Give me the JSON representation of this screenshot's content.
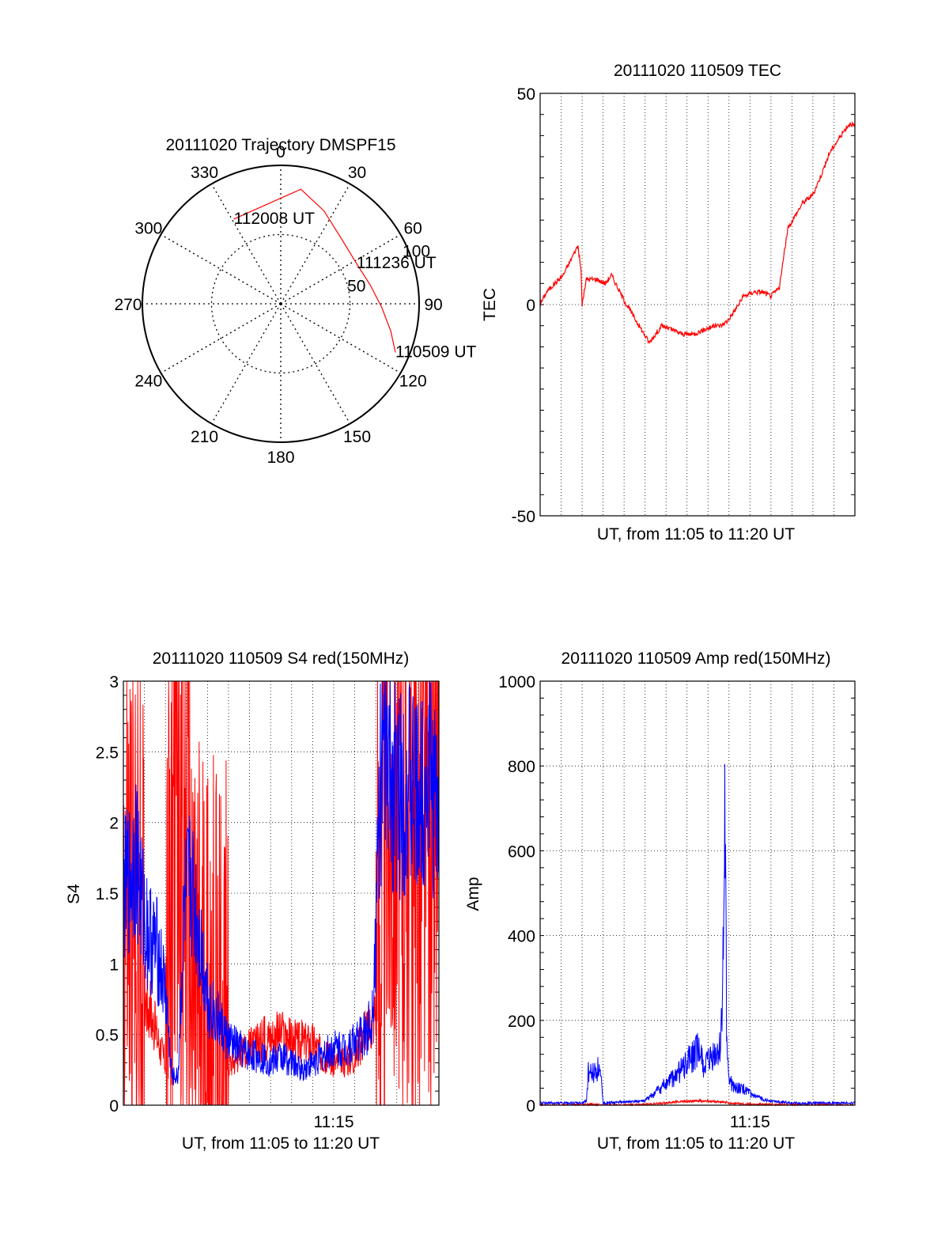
{
  "chart_data": [
    {
      "id": "trajectory",
      "type": "polar",
      "title": "20111020 Trajectory DMSPF15",
      "azimuth_labels": [
        "0",
        "30",
        "60",
        "90",
        "120",
        "150",
        "180",
        "210",
        "240",
        "270",
        "300",
        "330"
      ],
      "azimuths": [
        0,
        30,
        60,
        90,
        120,
        150,
        180,
        210,
        240,
        270,
        300,
        330
      ],
      "radial_labels": [
        "50",
        "100"
      ],
      "radial_values": [
        50,
        100
      ],
      "radial_max": 100,
      "series": [
        {
          "color": "#ff0000",
          "points": [
            {
              "az": 113,
              "zen": 90,
              "label": "110509 UT"
            },
            {
              "az": 104,
              "zen": 82
            },
            {
              "az": 92,
              "zen": 73
            },
            {
              "az": 78,
              "zen": 66
            },
            {
              "az": 62,
              "zen": 62,
              "label": "111236 UT"
            },
            {
              "az": 44,
              "zen": 64
            },
            {
              "az": 25,
              "zen": 74
            },
            {
              "az": 10,
              "zen": 84
            },
            {
              "az": 331,
              "zen": 70,
              "label": "112008 UT"
            }
          ]
        }
      ]
    },
    {
      "id": "tec",
      "type": "line",
      "title": "20111020 110509 TEC",
      "xlabel": "UT, from 11:05 to 11:20 UT",
      "ylabel": "TEC",
      "xlim": [
        0,
        15
      ],
      "ylim": [
        -50,
        50
      ],
      "yticks": [
        "-50",
        "0",
        "50"
      ],
      "ytick_values": [
        -50,
        0,
        50
      ],
      "xticks": [],
      "grid": true,
      "series": [
        {
          "color": "#ff0000",
          "x": [
            0,
            0.3,
            0.7,
            1.1,
            1.5,
            1.8,
            1.95,
            2.0,
            2.2,
            2.7,
            3.1,
            3.4,
            4.0,
            4.6,
            5.2,
            5.8,
            6.3,
            6.8,
            7.3,
            7.8,
            8.3,
            8.6,
            8.9,
            9.2,
            9.7,
            10.2,
            10.6,
            11.0,
            11.4,
            11.8,
            12.5,
            13.0,
            13.5,
            13.8,
            14.2,
            14.6,
            14.8,
            15.0
          ],
          "y": [
            0,
            3,
            5,
            7,
            11,
            14,
            8,
            0,
            6,
            6,
            5,
            7,
            1,
            -4,
            -9,
            -5,
            -6,
            -7,
            -7,
            -6,
            -5,
            -5,
            -4,
            -2,
            2,
            3,
            3,
            2,
            4,
            18,
            24,
            26,
            32,
            36,
            39,
            42,
            43,
            42
          ]
        }
      ]
    },
    {
      "id": "s4",
      "type": "line",
      "title": "20111020 110509 S4 red(150MHz)",
      "xlabel": "UT, from 11:05 to 11:20 UT",
      "ylabel": "S4",
      "xlim": [
        0,
        15
      ],
      "ylim": [
        0,
        3
      ],
      "yticks": [
        "0",
        "0.5",
        "1",
        "1.5",
        "2",
        "2.5",
        "3"
      ],
      "ytick_values": [
        0,
        0.5,
        1,
        1.5,
        2,
        2.5,
        3
      ],
      "xticks": [
        "11:15"
      ],
      "xtick_values": [
        10
      ],
      "grid": true,
      "series": [
        {
          "color": "#ff0000",
          "x": [
            0,
            0.5,
            1.0,
            2.0,
            2.5,
            3.0,
            3.5,
            4.0,
            4.5,
            5.0,
            5.5,
            6.0,
            6.5,
            7.0,
            7.5,
            8.0,
            8.5,
            9.0,
            9.5,
            10.0,
            10.5,
            11.0,
            11.5,
            11.8,
            12.0,
            12.5,
            13.0,
            13.5,
            14.0,
            15.0
          ],
          "y": [
            1.5,
            1.2,
            0.8,
            0.3,
            2.5,
            1.5,
            0.5,
            0.4,
            0.3,
            0.3,
            0.35,
            0.4,
            0.45,
            0.5,
            0.5,
            0.45,
            0.45,
            0.45,
            0.35,
            0.3,
            0.3,
            0.35,
            0.5,
            0.6,
            0.7,
            2.0,
            2.3,
            2.0,
            1.8,
            2.0
          ]
        },
        {
          "color": "#0000ff",
          "x": [
            0,
            0.3,
            0.6,
            0.9,
            1.2,
            1.6,
            2.0,
            2.3,
            2.6,
            2.9,
            3.2,
            3.5,
            3.8,
            4.1,
            4.5,
            5.0,
            5.5,
            6.0,
            6.5,
            7.0,
            7.5,
            8.0,
            8.5,
            9.0,
            9.5,
            10.0,
            10.5,
            11.0,
            11.5,
            11.8,
            12.0,
            12.2,
            12.5,
            13.0,
            13.5,
            14.0,
            14.5,
            15.0
          ],
          "y": [
            1.5,
            1.6,
            1.8,
            1.4,
            1.2,
            1.1,
            0.8,
            0.2,
            0.2,
            1.4,
            1.6,
            1.3,
            1.0,
            0.7,
            0.6,
            0.45,
            0.4,
            0.35,
            0.35,
            0.3,
            0.35,
            0.3,
            0.25,
            0.3,
            0.35,
            0.4,
            0.4,
            0.45,
            0.5,
            0.6,
            1.2,
            2.3,
            2.4,
            2.2,
            2.3,
            2.1,
            2.4,
            2.0
          ]
        }
      ]
    },
    {
      "id": "amp",
      "type": "line",
      "title": "20111020 110509 Amp red(150MHz)",
      "xlabel": "UT, from 11:05 to 11:20 UT",
      "ylabel": "Amp",
      "xlim": [
        0,
        15
      ],
      "ylim": [
        0,
        1000
      ],
      "yticks": [
        "0",
        "200",
        "400",
        "600",
        "800",
        "1000"
      ],
      "ytick_values": [
        0,
        200,
        400,
        600,
        800,
        1000
      ],
      "xticks": [
        "11:15"
      ],
      "xtick_values": [
        10
      ],
      "grid": true,
      "series": [
        {
          "color": "#ff0000",
          "x": [
            0,
            2.0,
            2.3,
            2.9,
            4.0,
            5.5,
            6.5,
            7.5,
            8.5,
            9.0,
            10.0,
            15.0
          ],
          "y": [
            0,
            0,
            2,
            0,
            0,
            3,
            8,
            10,
            8,
            5,
            2,
            0
          ]
        },
        {
          "color": "#0000ff",
          "x": [
            0,
            2.0,
            2.2,
            2.3,
            2.5,
            2.8,
            2.9,
            3.0,
            5.0,
            5.5,
            6.0,
            6.5,
            7.0,
            7.5,
            7.8,
            8.2,
            8.6,
            8.75,
            8.8,
            8.85,
            8.9,
            8.95,
            9.0,
            9.2,
            9.5,
            9.8,
            10.2,
            10.6,
            11.0,
            11.5,
            12.0,
            15.0
          ],
          "y": [
            5,
            5,
            10,
            80,
            75,
            90,
            60,
            5,
            10,
            30,
            50,
            70,
            100,
            130,
            90,
            110,
            130,
            380,
            670,
            400,
            140,
            110,
            60,
            45,
            40,
            35,
            20,
            15,
            10,
            8,
            5,
            5
          ]
        }
      ]
    }
  ]
}
